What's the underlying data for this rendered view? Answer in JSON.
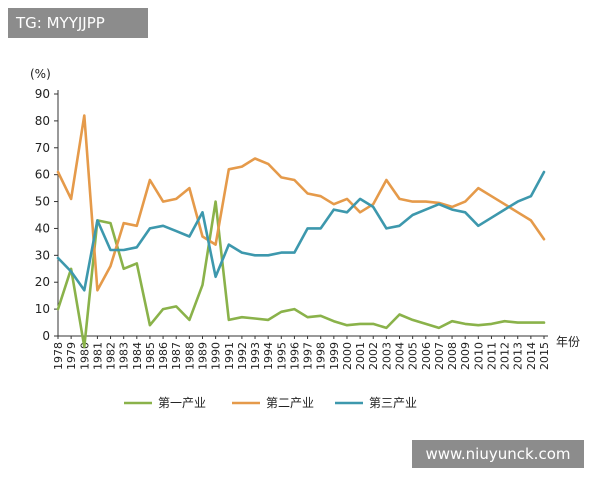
{
  "watermarks": {
    "top_left": "TG: MYYJJPP",
    "bottom_right": "www.niuyunck.com"
  },
  "chart_data": {
    "type": "line",
    "ylabel": "(%)",
    "xlabel": "年份",
    "ylim": [
      0,
      90
    ],
    "yticks": [
      0,
      10,
      20,
      30,
      40,
      50,
      60,
      70,
      80,
      90
    ],
    "x": [
      "1978",
      "1979",
      "1980",
      "1981",
      "1982",
      "1983",
      "1984",
      "1985",
      "1986",
      "1987",
      "1988",
      "1989",
      "1990",
      "1991",
      "1992",
      "1993",
      "1994",
      "1995",
      "1996",
      "1997",
      "1998",
      "1999",
      "2000",
      "2001",
      "2002",
      "2003",
      "2004",
      "2005",
      "2006",
      "2007",
      "2008",
      "2009",
      "2010",
      "2011",
      "2012",
      "2013",
      "2014",
      "2015"
    ],
    "grid": false,
    "legend_position": "bottom",
    "series": [
      {
        "name": "第一产业",
        "color": "#8ab24a",
        "values": [
          10,
          25,
          -4,
          43,
          42,
          25,
          27,
          4,
          10,
          11,
          6,
          19,
          50,
          6,
          7,
          6.5,
          6,
          9,
          10,
          7,
          7.5,
          5.5,
          4,
          4.5,
          4.5,
          3,
          8,
          6,
          4.5,
          3,
          5.5,
          4.5,
          4,
          4.5,
          5.5,
          5,
          5,
          5
        ]
      },
      {
        "name": "第二产业",
        "color": "#e59a4a",
        "values": [
          61,
          51,
          82,
          17,
          26,
          42,
          41,
          58,
          50,
          51,
          55,
          37,
          34,
          62,
          63,
          66,
          64,
          59,
          58,
          53,
          52,
          49,
          51,
          46,
          49,
          58,
          51,
          50,
          50,
          49.5,
          48,
          50,
          55,
          52,
          49,
          46,
          43,
          36
        ]
      },
      {
        "name": "第三产业",
        "color": "#3d98ad",
        "values": [
          29,
          24,
          17,
          43,
          32,
          32,
          33,
          40,
          41,
          39,
          37,
          46,
          22,
          34,
          31,
          30,
          30,
          31,
          31,
          40,
          40,
          47,
          46,
          51,
          48,
          40,
          41,
          45,
          47,
          49,
          47,
          46,
          41,
          44,
          47,
          50,
          52,
          61
        ]
      }
    ]
  }
}
